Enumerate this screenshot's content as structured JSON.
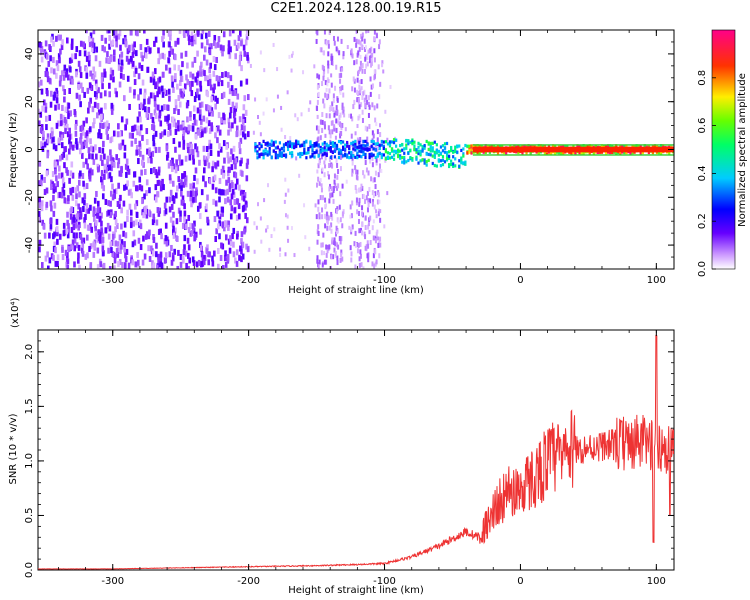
{
  "title": "C2E1.2024.128.00.19.R15",
  "chart_data": [
    {
      "type": "heatmap",
      "xlabel": "Height of straight line (km)",
      "ylabel": "Frequency (Hz)",
      "xlim": [
        -355,
        113
      ],
      "ylim": [
        -50,
        50
      ],
      "xticks": [
        -300,
        -200,
        -100,
        0,
        100
      ],
      "yticks": [
        -40,
        -20,
        0,
        20,
        40
      ],
      "grid": false,
      "colorbar": {
        "label": "Normalized spectral amplitude",
        "ticks": [
          "0.0",
          "0.2",
          "0.4",
          "0.6",
          "0.8"
        ],
        "range": [
          0,
          1
        ]
      },
      "features": [
        {
          "name": "",
          "x_range": [
            -355,
            -200
          ],
          "freq_range": [
            -50,
            50
          ],
          "amplitude": 0.1
        },
        {
          "name": "",
          "x_range": [
            -195,
            -100
          ],
          "center_freq": 0,
          "amplitude": 0.35
        },
        {
          "name": "",
          "x_range": [
            -100,
            -40
          ],
          "center_freq": -3,
          "amplitude": 0.5
        },
        {
          "name": "",
          "x_range": [
            -35,
            113
          ],
          "center_freq": 0,
          "amplitude": 0.9
        }
      ]
    },
    {
      "type": "line",
      "xlabel": "Height of straight line (km)",
      "ylabel": "SNR (10 * v/v)",
      "scale_label": "(x10⁴)",
      "xlim": [
        -355,
        113
      ],
      "ylim": [
        0,
        2.2
      ],
      "xticks": [
        -300,
        -200,
        -100,
        0,
        100
      ],
      "yticks": [
        "0.0",
        "0.5",
        "1.0",
        "1.5",
        "2.0"
      ],
      "color": "#ee3333",
      "series": [
        {
          "name": "",
          "x": [
            -355,
            -300,
            -250,
            -200,
            -150,
            -120,
            -100,
            -80,
            -60,
            -40,
            -30,
            -20,
            -10,
            0,
            10,
            20,
            30,
            40,
            50,
            60,
            70,
            80,
            90,
            100,
            105,
            113
          ],
          "y": [
            0.01,
            0.01,
            0.02,
            0.03,
            0.04,
            0.05,
            0.06,
            0.12,
            0.22,
            0.35,
            0.3,
            0.55,
            0.7,
            0.75,
            0.85,
            1.0,
            1.05,
            1.1,
            1.12,
            1.14,
            1.15,
            1.16,
            1.17,
            1.15,
            1.12,
            1.1
          ]
        }
      ]
    }
  ]
}
